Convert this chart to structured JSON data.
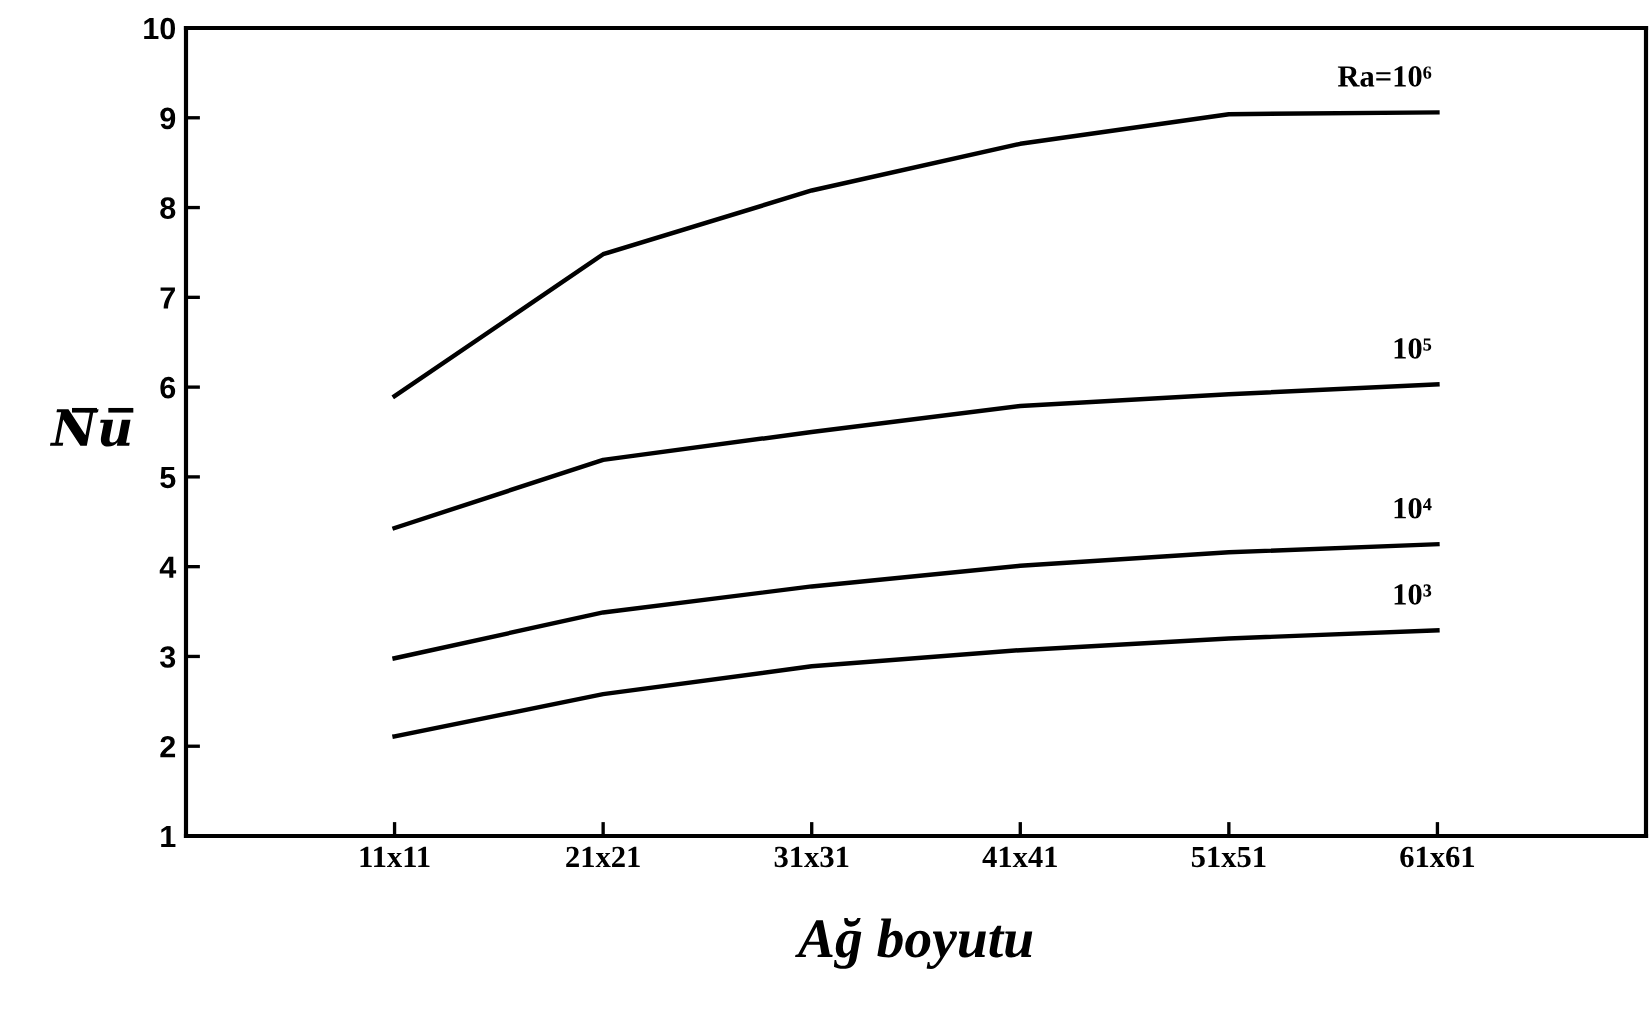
{
  "chart_data": {
    "type": "line",
    "xlabel": "Ağ boyutu",
    "ylabel": "N̅u̅",
    "categories": [
      null,
      "11x11",
      "21x21",
      "31x31",
      "41x41",
      "51x51",
      "61x61",
      null
    ],
    "series": [
      {
        "name": "Ra=10⁶",
        "color": "#000000",
        "values": [
          null,
          5.9,
          7.48,
          8.19,
          8.71,
          9.04,
          9.06,
          null
        ]
      },
      {
        "name": "10⁵",
        "color": "#000000",
        "values": [
          null,
          4.43,
          5.19,
          5.5,
          5.79,
          5.92,
          6.03,
          null
        ]
      },
      {
        "name": "10⁴",
        "color": "#000000",
        "values": [
          null,
          2.98,
          3.49,
          3.78,
          4.01,
          4.16,
          4.25,
          null
        ]
      },
      {
        "name": "10³",
        "color": "#000000",
        "values": [
          null,
          2.11,
          2.58,
          2.89,
          3.07,
          3.2,
          3.29,
          null
        ]
      }
    ],
    "ylim": [
      1,
      10
    ],
    "yticks": [
      1,
      2,
      3,
      4,
      5,
      6,
      7,
      8,
      9,
      10
    ],
    "grid": false,
    "legend": false,
    "marker": "none",
    "line_style": "solid"
  }
}
